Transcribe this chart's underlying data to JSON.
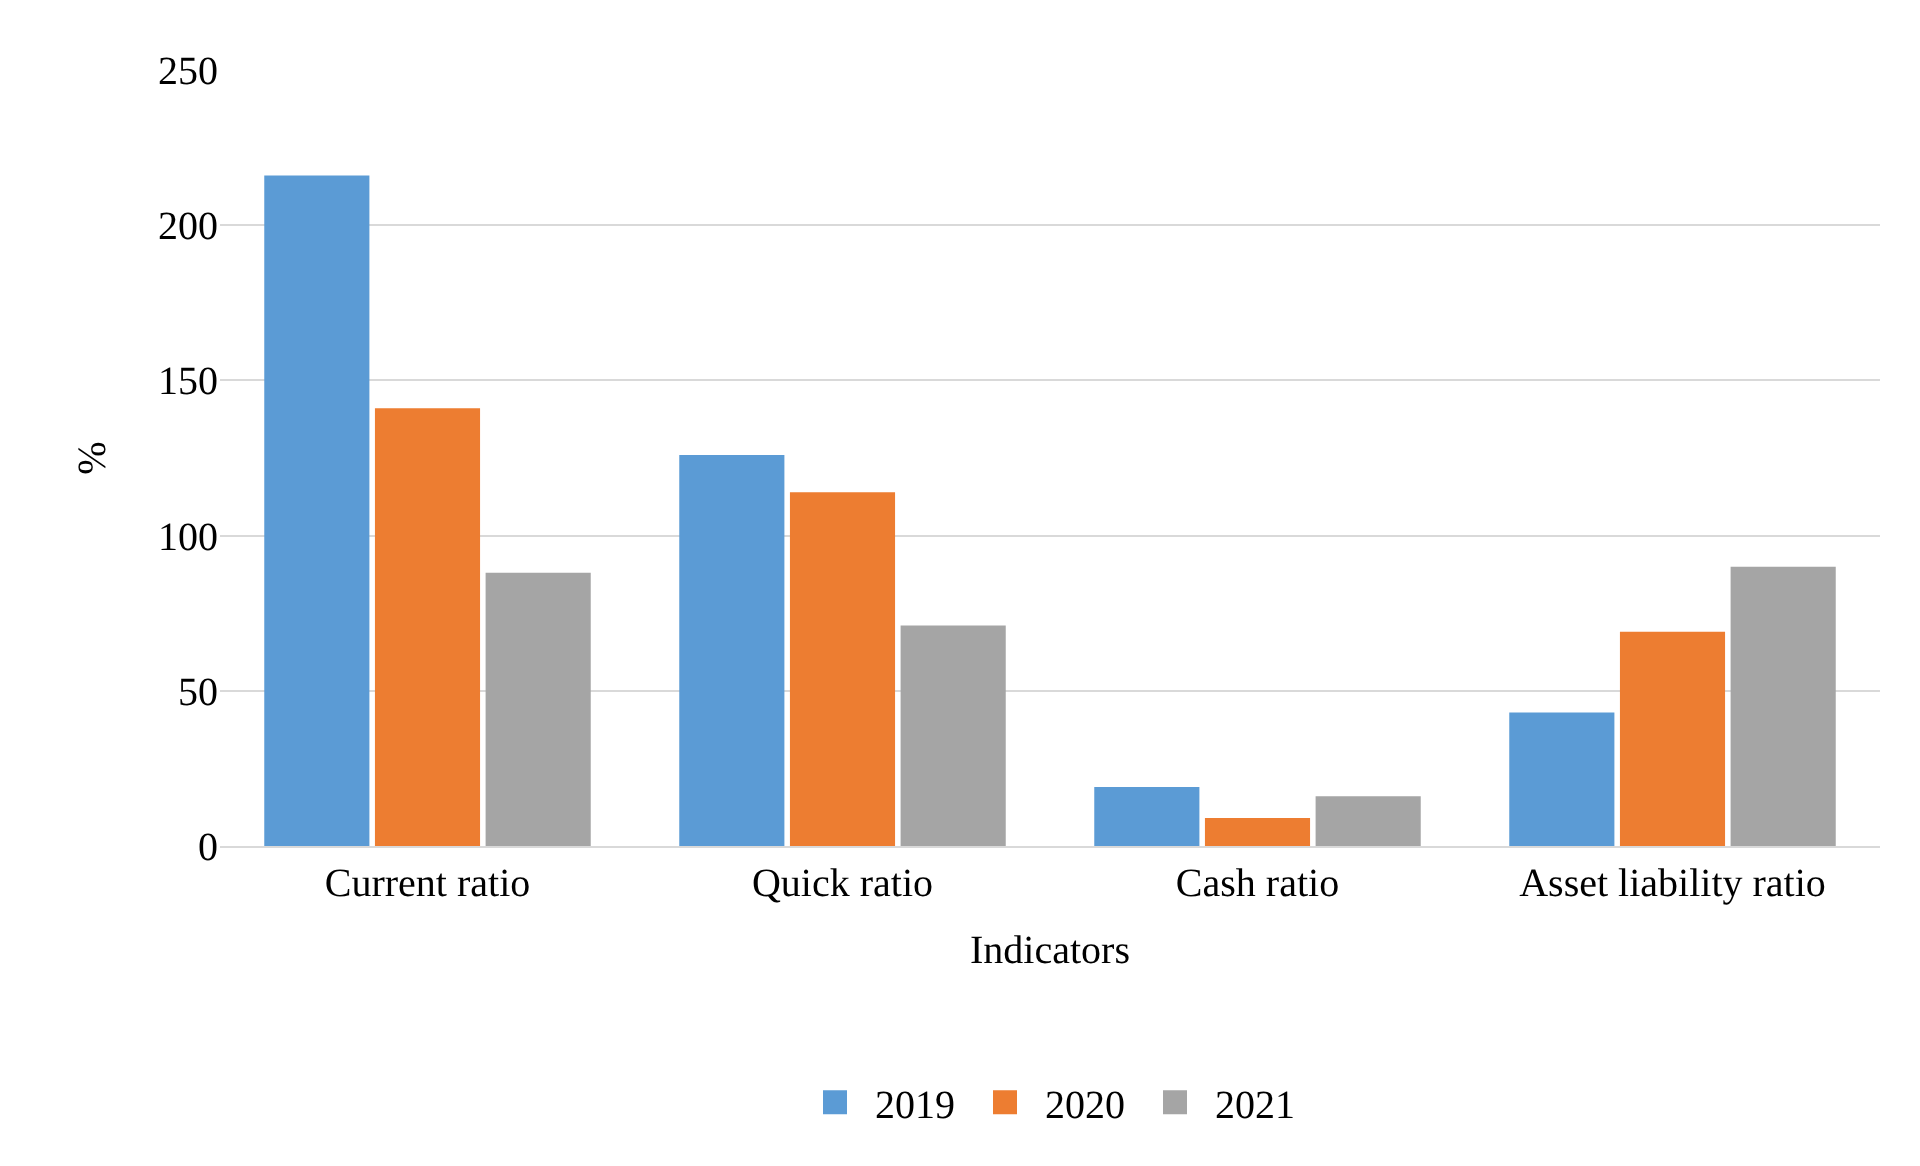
{
  "chart_data": {
    "type": "bar",
    "xlabel": "Indicators",
    "ylabel": "%",
    "categories": [
      "Current ratio",
      "Quick ratio",
      "Cash ratio",
      "Asset liability ratio"
    ],
    "series": [
      {
        "name": "2019",
        "color": "#5b9bd5",
        "values": [
          216,
          126,
          19,
          43
        ]
      },
      {
        "name": "2020",
        "color": "#ed7d31",
        "values": [
          141,
          114,
          9,
          69
        ]
      },
      {
        "name": "2021",
        "color": "#a5a5a5",
        "values": [
          88,
          71,
          16,
          90
        ]
      }
    ],
    "ylim": [
      0,
      250
    ],
    "yticks": [
      0,
      50,
      100,
      150,
      200,
      250
    ],
    "grid": "y",
    "legend": "bottom"
  }
}
